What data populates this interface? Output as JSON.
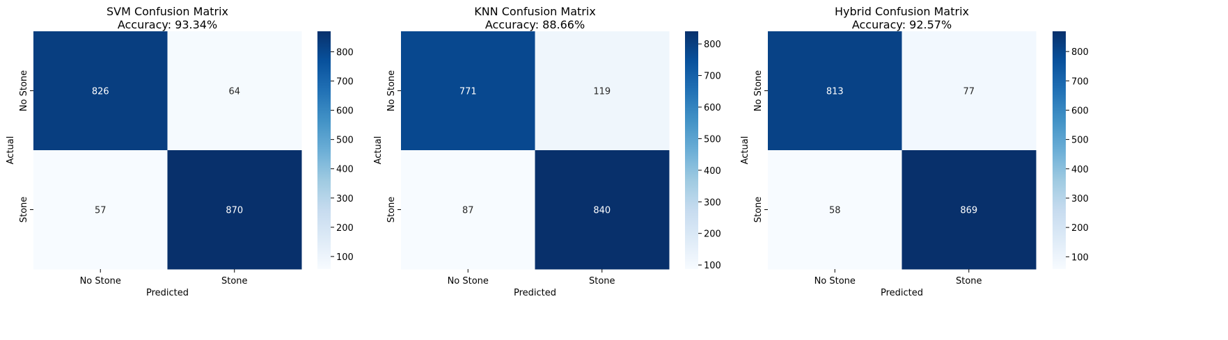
{
  "chart_data": [
    {
      "type": "heatmap",
      "title": "SVM Confusion Matrix",
      "subtitle": "Accuracy: 93.34%",
      "xlabel": "Predicted",
      "ylabel": "Actual",
      "x_categories": [
        "No Stone",
        "Stone"
      ],
      "y_categories": [
        "No Stone",
        "Stone"
      ],
      "values": [
        [
          826,
          64
        ],
        [
          57,
          870
        ]
      ],
      "colorbar": {
        "range": [
          57,
          870
        ],
        "ticks": [
          100,
          200,
          300,
          400,
          500,
          600,
          700,
          800
        ],
        "colormap": "Blues"
      }
    },
    {
      "type": "heatmap",
      "title": "KNN Confusion Matrix",
      "subtitle": "Accuracy: 88.66%",
      "xlabel": "Predicted",
      "ylabel": "Actual",
      "x_categories": [
        "No Stone",
        "Stone"
      ],
      "y_categories": [
        "No Stone",
        "Stone"
      ],
      "values": [
        [
          771,
          119
        ],
        [
          87,
          840
        ]
      ],
      "colorbar": {
        "range": [
          87,
          840
        ],
        "ticks": [
          100,
          200,
          300,
          400,
          500,
          600,
          700,
          800
        ],
        "colormap": "Blues"
      }
    },
    {
      "type": "heatmap",
      "title": "Hybrid Confusion Matrix",
      "subtitle": "Accuracy: 92.57%",
      "xlabel": "Predicted",
      "ylabel": "Actual",
      "x_categories": [
        "No Stone",
        "Stone"
      ],
      "y_categories": [
        "No Stone",
        "Stone"
      ],
      "values": [
        [
          813,
          77
        ],
        [
          58,
          869
        ]
      ],
      "colorbar": {
        "range": [
          58,
          869
        ],
        "ticks": [
          100,
          200,
          300,
          400,
          500,
          600,
          700,
          800
        ],
        "colormap": "Blues"
      }
    }
  ]
}
